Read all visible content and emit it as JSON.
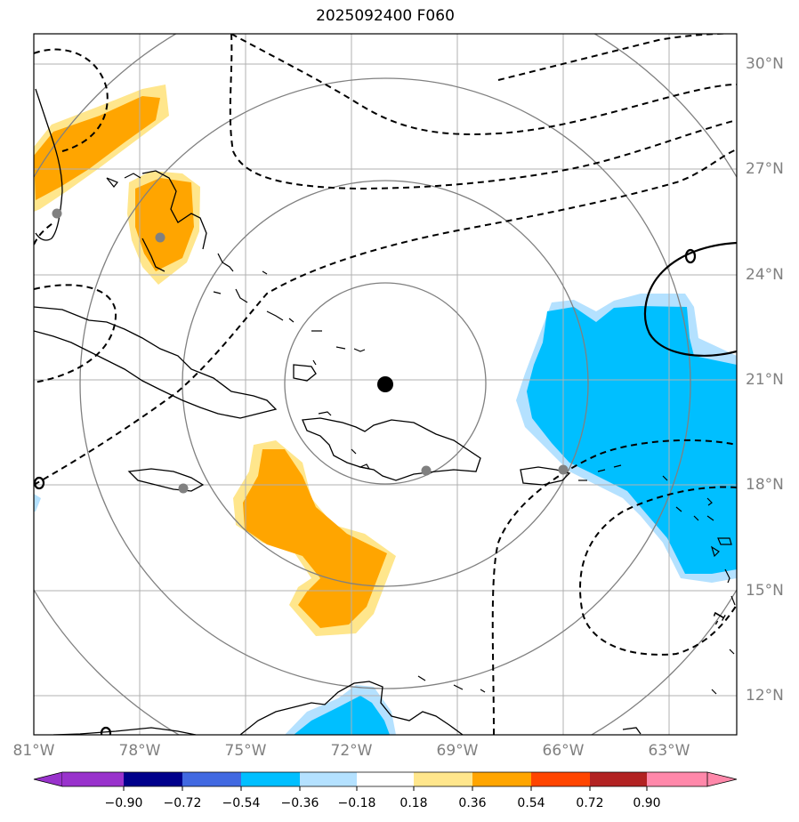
{
  "title": "2025092400 F060",
  "colors": {
    "land": "#000000",
    "grid": "#b0b0b0",
    "rings": "#808080",
    "positive_orange": "#ffa500",
    "positive_yellow": "#ffe68c",
    "negative_cyan": "#00bfff",
    "negative_light": "#b4e1ff",
    "city_marker": "#808080",
    "center_marker": "#000000"
  },
  "lon_labels": [
    "81°W",
    "78°W",
    "75°W",
    "72°W",
    "69°W",
    "66°W",
    "63°W"
  ],
  "lat_labels": [
    "30°N",
    "27°N",
    "24°N",
    "21°N",
    "18°N",
    "15°N",
    "12°N"
  ],
  "contour_label": "-1",
  "colorbar": {
    "labels": [
      "−0.90",
      "−0.72",
      "−0.54",
      "−0.36",
      "−0.18",
      "0.18",
      "0.36",
      "0.54",
      "0.72",
      "0.90"
    ],
    "colors": [
      "#9932cc",
      "#00008b",
      "#4169e1",
      "#00bfff",
      "#b4e1ff",
      "#ffffff",
      "#ffe68c",
      "#ffa500",
      "#ff4500",
      "#b22222",
      "#ff88aa"
    ]
  },
  "center_marker": "storm-center",
  "city_markers": [
    "city-miami",
    "city-nassau",
    "city-kingston",
    "city-santo-domingo",
    "city-san-juan"
  ]
}
